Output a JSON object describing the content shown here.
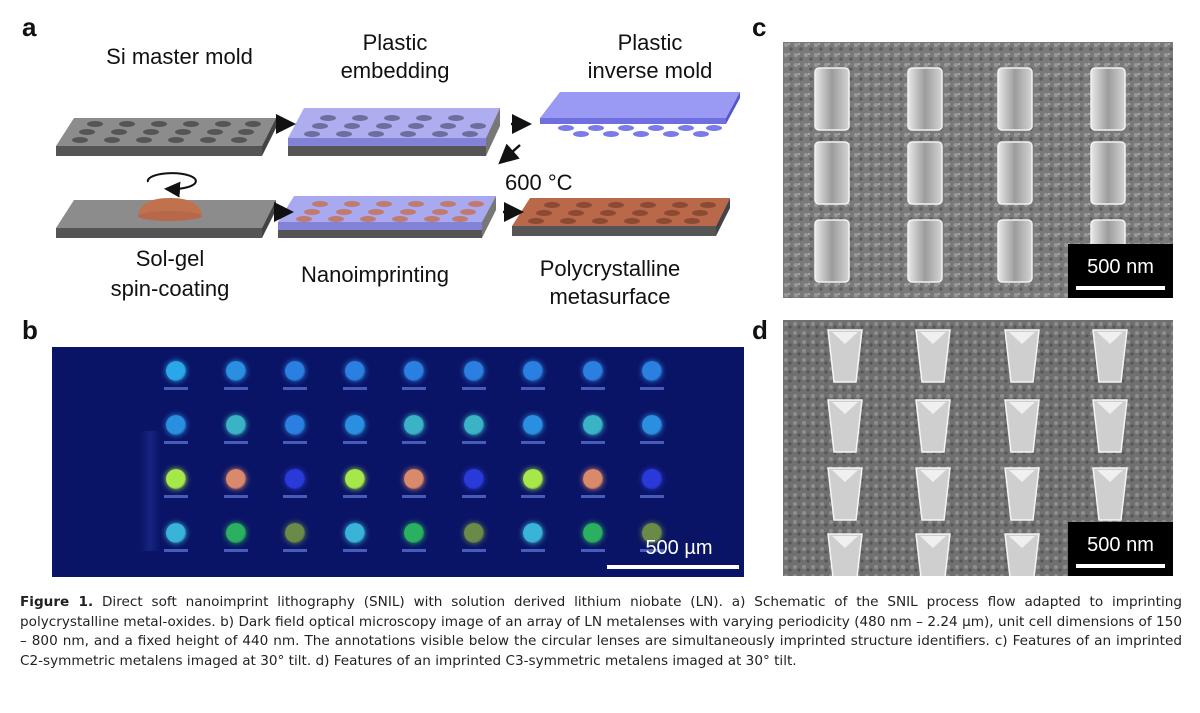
{
  "panels": {
    "a": "a",
    "b": "b",
    "c": "c",
    "d": "d"
  },
  "schematic": {
    "steps": {
      "si_master": "Si master mold",
      "plastic_embedding_1": "Plastic",
      "plastic_embedding_2": "embedding",
      "inverse_mold_1": "Plastic",
      "inverse_mold_2": "inverse mold",
      "temperature": "600 °C",
      "solgel_1": "Sol-gel",
      "solgel_2": "spin-coating",
      "nanoimprinting": "Nanoimprinting",
      "poly_1": "Polycrystalline",
      "poly_2": "metasurface"
    },
    "colors": {
      "substrate_top": "#8c8c8c",
      "substrate_side": "#4a4a4a",
      "plastic": "#8f8ff0",
      "oxide": "#b8684a"
    }
  },
  "microscopy": {
    "scale_label": "500 µm",
    "lens_rows": [
      [
        "#2aa7e8",
        "#2a8fe0",
        "#2a7fe0",
        "#2a7fe0",
        "#2a7fe0",
        "#2a7fe0",
        "#2a7fe0",
        "#2a7fe0",
        "#2a7fe0"
      ],
      [
        "#2a8fe0",
        "#3ab3c6",
        "#2a7fe0",
        "#2a8fe0",
        "#3ab3c6",
        "#3ab3c6",
        "#2a8fe0",
        "#3ab3c6",
        "#2a8fe0"
      ],
      [
        "#a6e84a",
        "#d88a6a",
        "#2a3ad8",
        "#a6e84a",
        "#d88a6a",
        "#2a3ad8",
        "#a6e84a",
        "#d88a6a",
        "#2a3ad8"
      ],
      [
        "#3ab3d8",
        "#2ab060",
        "#6a8a4a",
        "#3ab3d8",
        "#2ab060",
        "#6a8a4a",
        "#3ab3d8",
        "#2ab060",
        "#6a8a4a"
      ]
    ]
  },
  "sem": {
    "c_scale_label": "500 nm",
    "d_scale_label": "500 nm"
  },
  "caption": {
    "label": "Figure 1.",
    "text": " Direct soft nanoimprint lithography (SNIL) with solution derived lithium niobate (LN). a) Schematic of the SNIL process flow adapted to imprinting polycrystalline metal-oxides. b) Dark field optical microscopy image of an array of LN metalenses with varying periodicity (480 nm – 2.24 µm), unit cell dimensions of 150 – 800 nm, and a fixed height of 440 nm. The annotations visible below the circular lenses are simultaneously imprinted structure identifiers. c) Features of an imprinted C2-symmetric metalens imaged at 30° tilt. d) Features of an imprinted C3-symmetric metalens imaged at 30° tilt."
  }
}
